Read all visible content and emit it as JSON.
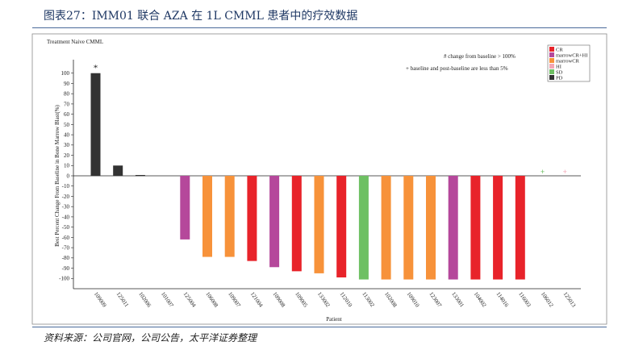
{
  "figure_title": "图表27：IMM01 联合 AZA 在 1L CMML 患者中的疗效数据",
  "source_text": "资料来源：公司官网，公司公告，太平洋证券整理",
  "chart_data": {
    "type": "bar",
    "title": "Treatment Naive CMML",
    "xlabel": "Patient",
    "ylabel": "Best Percent Change From Baseline in Bone Marrow Blast(%)",
    "ylim": [
      -110,
      110
    ],
    "yticks": [
      100,
      90,
      80,
      70,
      60,
      50,
      40,
      30,
      20,
      10,
      0,
      -10,
      -20,
      -30,
      -40,
      -50,
      -60,
      -70,
      -80,
      -90,
      -100
    ],
    "grid": false,
    "legend_position": "top-right",
    "notes": [
      "# change from baseline > 100%",
      "+ baseline and post-baseline are less than 5%"
    ],
    "legend": [
      {
        "label": "CR",
        "color": "#e8232a"
      },
      {
        "label": "marrowCR+HI",
        "color": "#b5489b"
      },
      {
        "label": "marrowCR",
        "color": "#f7923a"
      },
      {
        "label": "HI",
        "color": "#f4a6b5"
      },
      {
        "label": "SD",
        "color": "#6ec063"
      },
      {
        "label": "PD",
        "color": "#333333"
      }
    ],
    "categories": [
      "109009",
      "125011",
      "102006",
      "101007",
      "125004",
      "106008",
      "109007",
      "121004",
      "109008",
      "109005",
      "133002",
      "112010",
      "113002",
      "102008",
      "109010",
      "123007",
      "133001",
      "104002",
      "114016",
      "116003",
      "106012",
      "125013"
    ],
    "values": [
      100,
      10,
      0,
      0,
      -62,
      -79,
      -79,
      -83,
      -89,
      -93,
      -95,
      -99,
      -101,
      -101,
      -101,
      -101,
      -101,
      -101,
      -101,
      -101,
      null,
      null
    ],
    "colors": [
      "#333333",
      "#333333",
      "#333333",
      null,
      "#b5489b",
      "#f7923a",
      "#f7923a",
      "#e8232a",
      "#b5489b",
      "#e8232a",
      "#f7923a",
      "#e8232a",
      "#6ec063",
      "#f7923a",
      "#f7923a",
      "#f7923a",
      "#b5489b",
      "#e8232a",
      "#e8232a",
      "#e8232a",
      null,
      null
    ],
    "markers": [
      {
        "index": 0,
        "symbol": "*",
        "color": "#111111"
      },
      {
        "index": 20,
        "symbol": "+",
        "color": "#6ec063"
      },
      {
        "index": 21,
        "symbol": "+",
        "color": "#f4a6b5"
      }
    ]
  }
}
